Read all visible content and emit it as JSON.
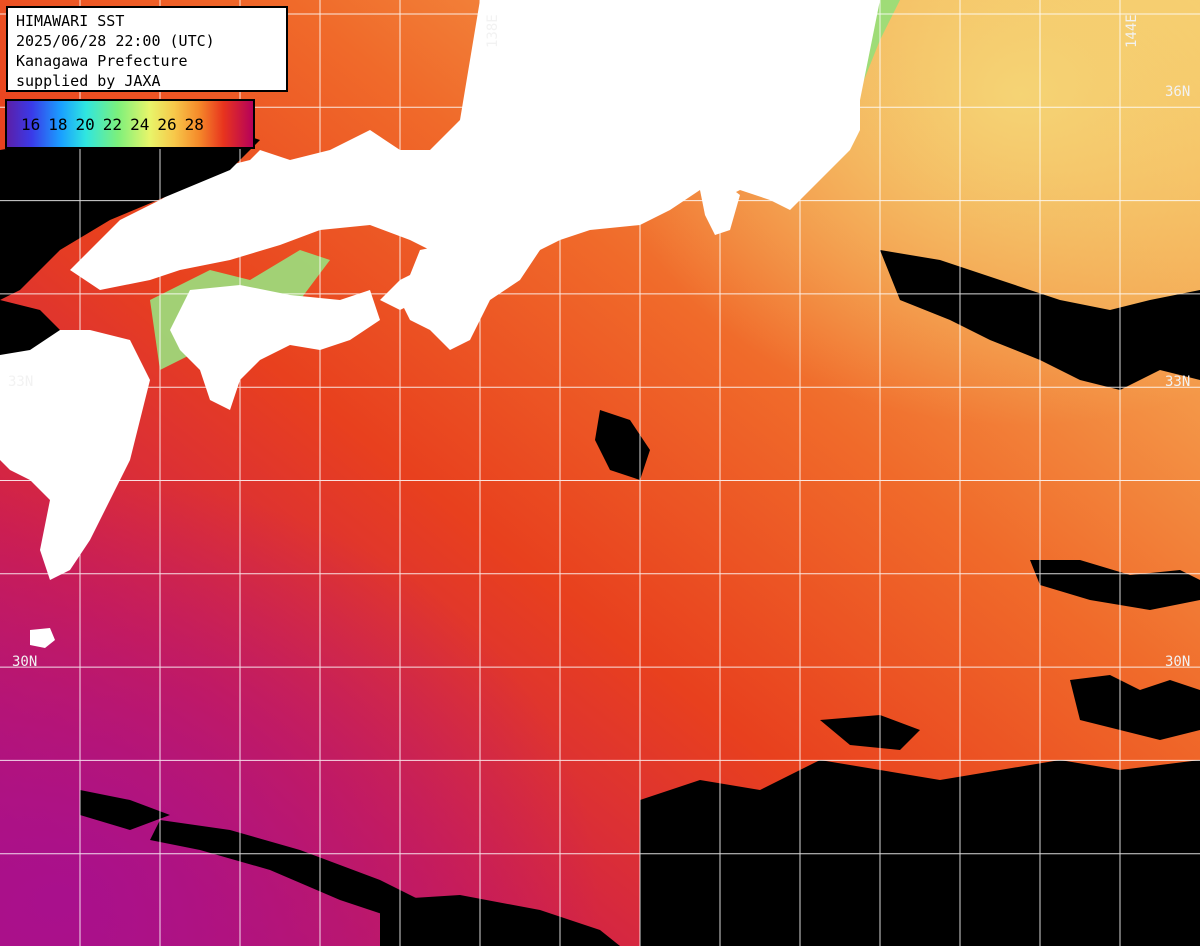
{
  "info": {
    "line1": "HIMAWARI SST",
    "line2": "2025/06/28 22:00 (UTC)",
    "line3": "Kanagawa Prefecture",
    "line4": "supplied by JAXA"
  },
  "scale": {
    "ticks": [
      "16",
      "18",
      "20",
      "22",
      "24",
      "26",
      "28"
    ],
    "colors": {
      "cool": "#3a3ae8",
      "mid": "#7cf07c",
      "warm": "#f58a2a",
      "hot": "#e8341e",
      "hottest": "#b5005a"
    }
  },
  "graticule": {
    "lat_labels": {
      "north": "36N",
      "middle": "33N",
      "south": "30N"
    },
    "lon_labels": {
      "west": "138E",
      "east": "144E"
    }
  },
  "colors": {
    "land": "#ffffff",
    "cloud": "#000000",
    "grid": "#ffffff"
  }
}
